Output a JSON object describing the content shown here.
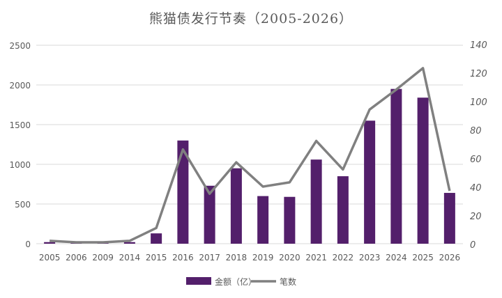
{
  "chart_data": {
    "type": "bar+line",
    "title": "熊猫债发行节奏（2005-2026）",
    "categories": [
      "2005",
      "2006",
      "2009",
      "2014",
      "2015",
      "2016",
      "2017",
      "2018",
      "2019",
      "2020",
      "2021",
      "2022",
      "2023",
      "2024",
      "2025",
      "2026"
    ],
    "series": [
      {
        "name": "金额（亿）",
        "type": "bar",
        "axis": "left",
        "color": "#531F6B",
        "values": [
          20,
          10,
          10,
          20,
          130,
          1300,
          730,
          950,
          600,
          590,
          1060,
          850,
          1550,
          1950,
          1840,
          640
        ]
      },
      {
        "name": "笔数",
        "type": "line",
        "axis": "right",
        "color": "#808080",
        "values": [
          2,
          1,
          1,
          2,
          11,
          66,
          35,
          57,
          40,
          43,
          72,
          52,
          94,
          108,
          123,
          37
        ]
      }
    ],
    "y_left": {
      "range": [
        0,
        2500
      ],
      "ticks": [
        "0",
        "500",
        "1000",
        "1500",
        "2000",
        "2500"
      ]
    },
    "y_right": {
      "range": [
        0,
        140
      ],
      "ticks": [
        "0",
        "20",
        "40",
        "60",
        "80",
        "100",
        "120",
        "140"
      ]
    },
    "grid": true,
    "legend": "bottom"
  }
}
